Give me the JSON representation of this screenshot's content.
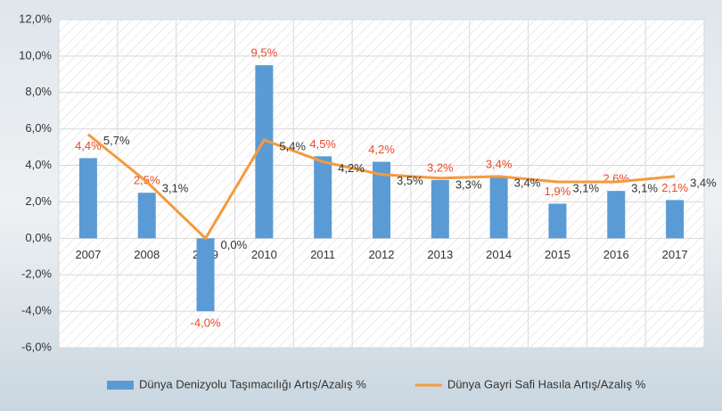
{
  "chart_data": {
    "type": "combo",
    "categories": [
      "2007",
      "2008",
      "2009",
      "2010",
      "2011",
      "2012",
      "2013",
      "2014",
      "2015",
      "2016",
      "2017"
    ],
    "series": [
      {
        "name": "Dünya Denizyolu Taşımacılığı Artış/Azalış %",
        "type": "bar",
        "color": "#5b9bd5",
        "values": [
          4.4,
          2.5,
          -4.0,
          9.5,
          4.5,
          4.2,
          3.2,
          3.4,
          1.9,
          2.6,
          2.1
        ],
        "value_labels": [
          "4,4%",
          "2,5%",
          "-4,0%",
          "9,5%",
          "4,5%",
          "4,2%",
          "3,2%",
          "3,4%",
          "1,9%",
          "2,6%",
          "2,1%"
        ],
        "label_color": "#e84a2b"
      },
      {
        "name": "Dünya Gayri Safi Hasıla Artış/Azalış %",
        "type": "line",
        "color": "#f49a3e",
        "values": [
          5.7,
          3.1,
          0.0,
          5.4,
          4.2,
          3.5,
          3.3,
          3.4,
          3.1,
          3.1,
          3.4
        ],
        "value_labels": [
          "5,7%",
          "3,1%",
          "0,0%",
          "5,4%",
          "4,2%",
          "3,5%",
          "3,3%",
          "3,4%",
          "3,1%",
          "3,1%",
          "3,4%"
        ],
        "label_color": "#333333"
      }
    ],
    "ylim": [
      -6,
      12
    ],
    "yticks": [
      {
        "value": -6,
        "label": "-6,0%"
      },
      {
        "value": -4,
        "label": "-4,0%"
      },
      {
        "value": -2,
        "label": "-2,0%"
      },
      {
        "value": 0,
        "label": "0,0%"
      },
      {
        "value": 2,
        "label": "2,0%"
      },
      {
        "value": 4,
        "label": "4,0%"
      },
      {
        "value": 6,
        "label": "6,0%"
      },
      {
        "value": 8,
        "label": "8,0%"
      },
      {
        "value": 10,
        "label": "10,0%"
      },
      {
        "value": 12,
        "label": "12,0%"
      }
    ],
    "grid": true,
    "legend": "bottom"
  }
}
